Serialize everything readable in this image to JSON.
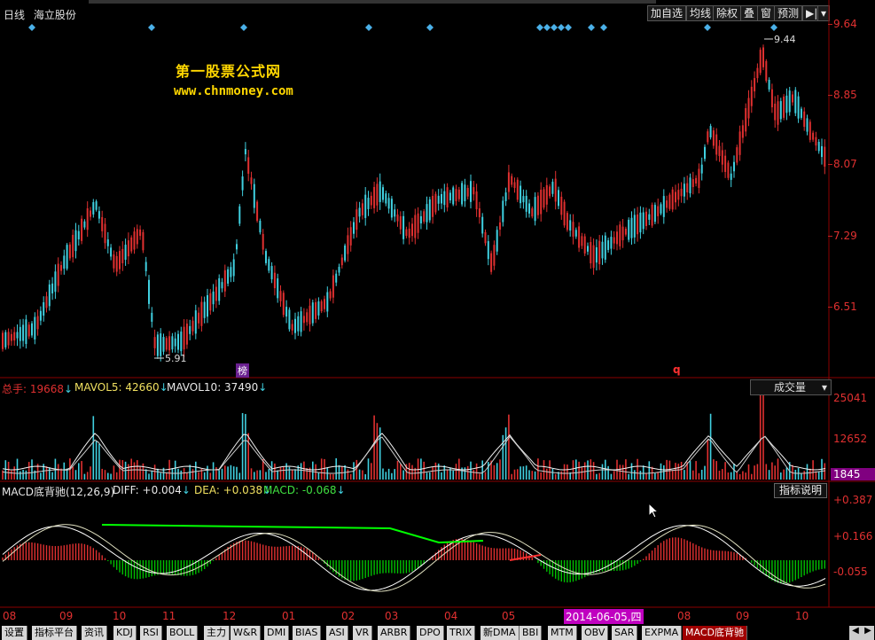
{
  "header": {
    "period": "日线",
    "stock_name": "海立股份",
    "buttons": [
      "加自选",
      "均线",
      "除权",
      "叠",
      "窗",
      "预测"
    ],
    "collapse": "▶|"
  },
  "watermark": {
    "title": "第一股票公式网",
    "url": "www.chnmoney.com"
  },
  "price_axis": [
    "9.64",
    "8.85",
    "8.07",
    "7.29",
    "6.51"
  ],
  "price_annotations": {
    "high": "9.44",
    "low": "5.91",
    "marker_bang": "榜",
    "marker_q": "q"
  },
  "volume": {
    "total_label": "总手: 19668",
    "ma5_label": "MAVOL5: 42660",
    "ma10_label": "MAVOL10: 37490",
    "dropdown": "成交量",
    "axis": [
      "25041",
      "12652"
    ],
    "current_badge": "1845"
  },
  "macd": {
    "title": "MACD底背驰(12,26,9)",
    "diff": "DIFF: +0.004",
    "dea": "DEA: +0.038",
    "macd": "MACD: -0.068",
    "help_button": "指标说明",
    "axis": [
      "+0.387",
      "+0.166",
      "-0.055"
    ]
  },
  "time_axis": [
    "08",
    "09",
    "10",
    "11",
    "12",
    "01",
    "02",
    "03",
    "04",
    "05",
    "08",
    "09",
    "10"
  ],
  "time_cursor": "2014-06-05,四",
  "tabs": [
    "设置",
    "指标平台",
    "资讯",
    "KDJ",
    "RSI",
    "BOLL",
    "主力",
    "W&R",
    "DMI",
    "BIAS",
    "ASI",
    "VR",
    "ARBR",
    "DPO",
    "TRIX",
    "新DMA",
    "BBI",
    "MTM",
    "OBV",
    "SAR",
    "EXPMA",
    "MACD底背驰"
  ],
  "active_tab": "MACD底背驰",
  "colors": {
    "up": "#e03030",
    "down": "#40d0e0",
    "axis": "#8b0000",
    "signal_line": "#00ff00",
    "macd_neg": "#00c000"
  }
}
